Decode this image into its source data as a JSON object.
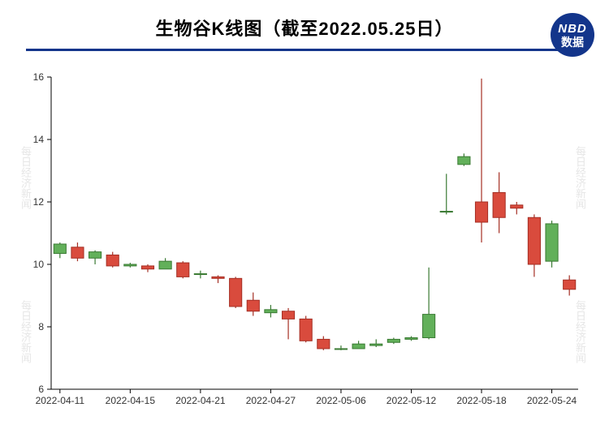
{
  "header": {
    "title": "生物谷K线图（截至2022.05.25日）",
    "underline_color": "#13358b"
  },
  "logo": {
    "line1": "NBD",
    "line2": "数据",
    "bg_color": "#13358b",
    "text_color": "#ffffff"
  },
  "watermark": {
    "text": "每日经济新闻",
    "color": "#e8e8e8"
  },
  "chart": {
    "type": "candlestick",
    "background_color": "#ffffff",
    "ylim": [
      6,
      16
    ],
    "ytick_step": 2,
    "yticks": [
      6,
      8,
      10,
      12,
      14,
      16
    ],
    "xticks": [
      "2022-04-11",
      "2022-04-15",
      "2022-04-21",
      "2022-04-27",
      "2022-05-06",
      "2022-05-12",
      "2022-05-18",
      "2022-05-24"
    ],
    "xtick_indices": [
      0,
      4,
      8,
      12,
      16,
      20,
      24,
      28
    ],
    "axis_fontsize": 12,
    "candle_width": 0.7,
    "up_color": "#62b05a",
    "up_border": "#3a7a33",
    "down_color": "#d94b3d",
    "down_border": "#a52f24",
    "spine_color": "#000000",
    "data": [
      {
        "date": "2022-04-11",
        "open": 10.35,
        "high": 10.7,
        "low": 10.2,
        "close": 10.65
      },
      {
        "date": "2022-04-12",
        "open": 10.55,
        "high": 10.7,
        "low": 10.1,
        "close": 10.2
      },
      {
        "date": "2022-04-13",
        "open": 10.2,
        "high": 10.45,
        "low": 10.0,
        "close": 10.4
      },
      {
        "date": "2022-04-14",
        "open": 10.3,
        "high": 10.4,
        "low": 9.9,
        "close": 9.95
      },
      {
        "date": "2022-04-15",
        "open": 9.95,
        "high": 10.05,
        "low": 9.9,
        "close": 10.0
      },
      {
        "date": "2022-04-18",
        "open": 9.95,
        "high": 10.0,
        "low": 9.75,
        "close": 9.85
      },
      {
        "date": "2022-04-19",
        "open": 9.85,
        "high": 10.2,
        "low": 9.85,
        "close": 10.1
      },
      {
        "date": "2022-04-20",
        "open": 10.05,
        "high": 10.1,
        "low": 9.55,
        "close": 9.6
      },
      {
        "date": "2022-04-21",
        "open": 9.7,
        "high": 9.8,
        "low": 9.55,
        "close": 9.7
      },
      {
        "date": "2022-04-22",
        "open": 9.6,
        "high": 9.65,
        "low": 9.4,
        "close": 9.55
      },
      {
        "date": "2022-04-25",
        "open": 9.55,
        "high": 9.6,
        "low": 8.6,
        "close": 8.65
      },
      {
        "date": "2022-04-26",
        "open": 8.85,
        "high": 9.1,
        "low": 8.35,
        "close": 8.5
      },
      {
        "date": "2022-04-27",
        "open": 8.45,
        "high": 8.7,
        "low": 8.3,
        "close": 8.55
      },
      {
        "date": "2022-04-28",
        "open": 8.5,
        "high": 8.6,
        "low": 7.6,
        "close": 8.25
      },
      {
        "date": "2022-04-29",
        "open": 8.25,
        "high": 8.35,
        "low": 7.5,
        "close": 7.55
      },
      {
        "date": "2022-05-05",
        "open": 7.6,
        "high": 7.7,
        "low": 7.25,
        "close": 7.3
      },
      {
        "date": "2022-05-06",
        "open": 7.3,
        "high": 7.4,
        "low": 7.25,
        "close": 7.3
      },
      {
        "date": "2022-05-09",
        "open": 7.3,
        "high": 7.55,
        "low": 7.3,
        "close": 7.45
      },
      {
        "date": "2022-05-10",
        "open": 7.4,
        "high": 7.6,
        "low": 7.35,
        "close": 7.45
      },
      {
        "date": "2022-05-11",
        "open": 7.5,
        "high": 7.65,
        "low": 7.45,
        "close": 7.6
      },
      {
        "date": "2022-05-12",
        "open": 7.6,
        "high": 7.7,
        "low": 7.55,
        "close": 7.65
      },
      {
        "date": "2022-05-13",
        "open": 7.65,
        "high": 9.9,
        "low": 7.6,
        "close": 8.4
      },
      {
        "date": "2022-05-16",
        "open": 11.7,
        "high": 12.9,
        "low": 11.6,
        "close": 11.7
      },
      {
        "date": "2022-05-17",
        "open": 13.2,
        "high": 13.55,
        "low": 13.15,
        "close": 13.45
      },
      {
        "date": "2022-05-18",
        "open": 12.0,
        "high": 15.95,
        "low": 10.7,
        "close": 11.35
      },
      {
        "date": "2022-05-19",
        "open": 12.3,
        "high": 12.95,
        "low": 11.0,
        "close": 11.5
      },
      {
        "date": "2022-05-20",
        "open": 11.9,
        "high": 12.0,
        "low": 11.6,
        "close": 11.8
      },
      {
        "date": "2022-05-23",
        "open": 11.5,
        "high": 11.6,
        "low": 9.6,
        "close": 10.0
      },
      {
        "date": "2022-05-24",
        "open": 10.1,
        "high": 11.4,
        "low": 9.9,
        "close": 11.3
      },
      {
        "date": "2022-05-25",
        "open": 9.5,
        "high": 9.65,
        "low": 9.0,
        "close": 9.2
      }
    ]
  }
}
